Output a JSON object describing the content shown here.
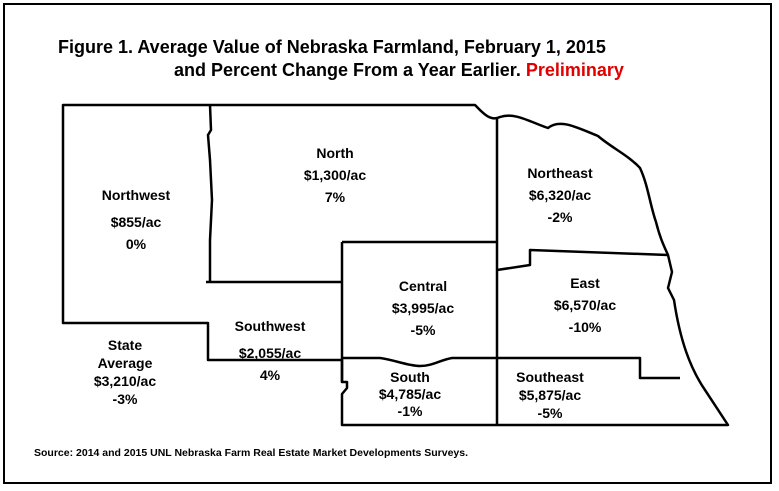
{
  "figure": {
    "title_line1": "Figure  1.  Average Value of Nebraska Farmland, February 1, 2015",
    "title_line2": "and Percent Change From a Year Earlier.",
    "title_preliminary": "Preliminary",
    "preliminary_color": "#e00000"
  },
  "regions": {
    "northwest": {
      "name": "Northwest",
      "value": "$855/ac",
      "change": "0%"
    },
    "north": {
      "name": "North",
      "value": "$1,300/ac",
      "change": "7%"
    },
    "northeast": {
      "name": "Northeast",
      "value": "$6,320/ac",
      "change": "-2%"
    },
    "central": {
      "name": "Central",
      "value": "$3,995/ac",
      "change": "-5%"
    },
    "east": {
      "name": "East",
      "value": "$6,570/ac",
      "change": "-10%"
    },
    "southwest": {
      "name": "Southwest",
      "value": "$2,055/ac",
      "change": "4%"
    },
    "south": {
      "name": "South",
      "value": "$4,785/ac",
      "change": "-1%"
    },
    "southeast": {
      "name": "Southeast",
      "value": "$5,875/ac",
      "change": "-5%"
    }
  },
  "state_average": {
    "line1": "State",
    "line2": "Average",
    "value": "$3,210/ac",
    "change": "-3%"
  },
  "source": "Source:  2014 and 2015 UNL Nebraska Farm Real Estate Market Developments Surveys."
}
